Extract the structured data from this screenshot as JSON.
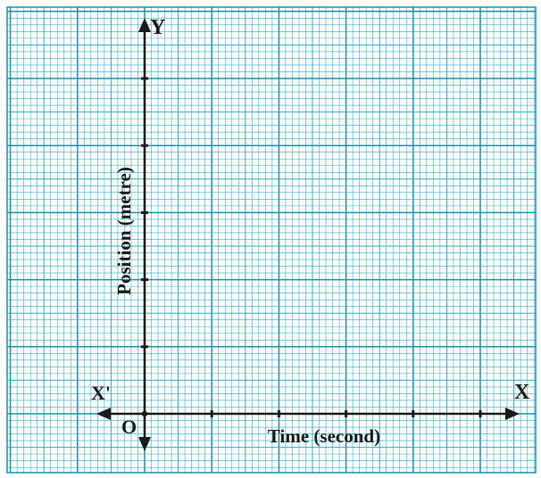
{
  "chart_data": {
    "type": "line",
    "title": "",
    "xlabel": "Time (second)",
    "ylabel": "Position (metre)",
    "series": [],
    "grid": true,
    "axis_labels": {
      "y_positive": "Y",
      "x_positive": "X",
      "x_negative": "X'",
      "origin": "O"
    },
    "x_major_ticks": 5,
    "y_major_ticks": 5
  },
  "colors": {
    "paper": "#ffffff",
    "grid_minor": "#2fb0c8",
    "grid_major": "#1596b3",
    "axis": "#1a1a1a"
  }
}
